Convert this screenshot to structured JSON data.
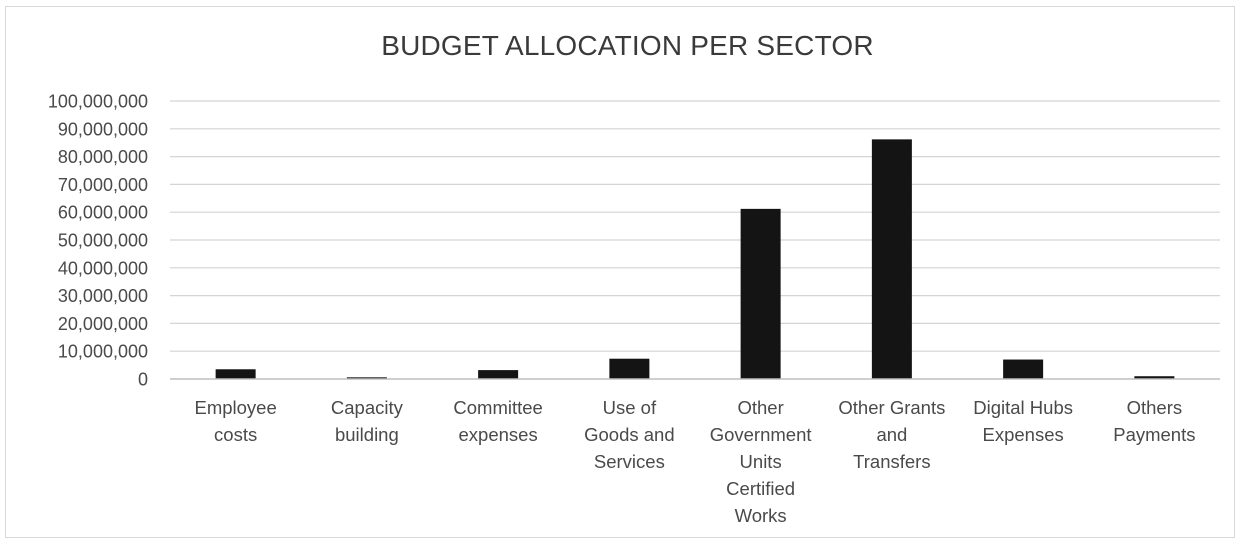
{
  "chart_data": {
    "type": "bar",
    "title": "BUDGET ALLOCATION PER SECTOR",
    "xlabel": "",
    "ylabel": "",
    "ylim": [
      0,
      100000000
    ],
    "yticks": [
      0,
      10000000,
      20000000,
      30000000,
      40000000,
      50000000,
      60000000,
      70000000,
      80000000,
      90000000,
      100000000
    ],
    "ytick_labels": [
      "0",
      "10,000,000",
      "20,000,000",
      "30,000,000",
      "40,000,000",
      "50,000,000",
      "60,000,000",
      "70,000,000",
      "80,000,000",
      "90,000,000",
      "100,000,000"
    ],
    "grid": true,
    "legend": "none",
    "bar_color": "#141414",
    "categories": [
      [
        "Employee",
        "costs"
      ],
      [
        "Capacity",
        "building"
      ],
      [
        "Committee",
        "expenses"
      ],
      [
        "Use of",
        "Goods and",
        "Services"
      ],
      [
        "Other",
        "Government",
        "Units",
        "Certified",
        "Works"
      ],
      [
        "Other Grants",
        "and",
        "Transfers"
      ],
      [
        "Digital Hubs",
        "Expenses"
      ],
      [
        "Others",
        "Payments"
      ]
    ],
    "values": [
      3500000,
      600000,
      3200000,
      7300000,
      61200000,
      86200000,
      7000000,
      1000000
    ]
  }
}
